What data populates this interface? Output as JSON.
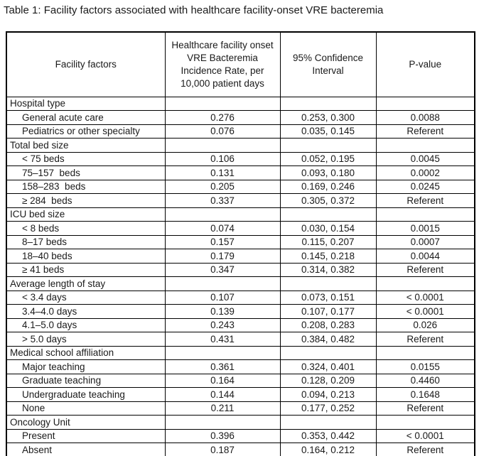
{
  "title": "Table 1: Facility factors associated with healthcare facility-onset VRE bacteremia",
  "table": {
    "headers": [
      "Facility factors",
      "Healthcare facility onset VRE Bacteremia Incidence Rate, per 10,000 patient days",
      "95% Confidence Interval",
      "P-value"
    ],
    "sections": [
      {
        "name": "Hospital type",
        "rows": [
          {
            "label": "General acute care",
            "rate": "0.276",
            "ci": "0.253, 0.300",
            "p": "0.0088"
          },
          {
            "label": "Pediatrics or other specialty",
            "rate": "0.076",
            "ci": "0.035, 0.145",
            "p": "Referent"
          }
        ]
      },
      {
        "name": "Total bed size",
        "rows": [
          {
            "label": "< 75 beds",
            "rate": "0.106",
            "ci": "0.052, 0.195",
            "p": "0.0045"
          },
          {
            "label": "75–157  beds",
            "rate": "0.131",
            "ci": "0.093, 0.180",
            "p": "0.0002"
          },
          {
            "label": "158–283  beds",
            "rate": "0.205",
            "ci": "0.169, 0.246",
            "p": "0.0245"
          },
          {
            "label": "≥ 284  beds",
            "rate": "0.337",
            "ci": "0.305, 0.372",
            "p": "Referent"
          }
        ]
      },
      {
        "name": "ICU bed size",
        "rows": [
          {
            "label": "< 8 beds",
            "rate": "0.074",
            "ci": "0.030, 0.154",
            "p": "0.0015"
          },
          {
            "label": "8–17 beds",
            "rate": "0.157",
            "ci": "0.115, 0.207",
            "p": "0.0007"
          },
          {
            "label": "18–40 beds",
            "rate": "0.179",
            "ci": "0.145, 0.218",
            "p": "0.0044"
          },
          {
            "label": "≥ 41 beds",
            "rate": "0.347",
            "ci": "0.314, 0.382",
            "p": "Referent"
          }
        ]
      },
      {
        "name": "Average length of stay",
        "rows": [
          {
            "label": "< 3.4 days",
            "rate": "0.107",
            "ci": "0.073, 0.151",
            "p": "< 0.0001"
          },
          {
            "label": "3.4–4.0 days",
            "rate": "0.139",
            "ci": "0.107, 0.177",
            "p": "< 0.0001"
          },
          {
            "label": "4.1–5.0 days",
            "rate": "0.243",
            "ci": "0.208, 0.283",
            "p": "0.026"
          },
          {
            "label": "> 5.0 days",
            "rate": "0.431",
            "ci": "0.384, 0.482",
            "p": "Referent"
          }
        ]
      },
      {
        "name": "Medical school affiliation",
        "rows": [
          {
            "label": "Major teaching",
            "rate": "0.361",
            "ci": "0.324, 0.401",
            "p": "0.0155"
          },
          {
            "label": "Graduate teaching",
            "rate": "0.164",
            "ci": "0.128, 0.209",
            "p": "0.4460"
          },
          {
            "label": "Undergraduate teaching",
            "rate": "0.144",
            "ci": "0.094, 0.213",
            "p": "0.1648"
          },
          {
            "label": "None",
            "rate": "0.211",
            "ci": "0.177, 0.252",
            "p": "Referent"
          }
        ]
      },
      {
        "name": "Oncology Unit",
        "rows": [
          {
            "label": "Present",
            "rate": "0.396",
            "ci": "0.353, 0.442",
            "p": "< 0.0001"
          },
          {
            "label": "Absent",
            "rate": "0.187",
            "ci": "0.164, 0.212",
            "p": "Referent"
          }
        ]
      }
    ]
  }
}
